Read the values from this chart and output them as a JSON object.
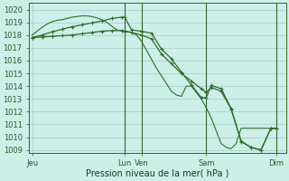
{
  "background_color": "#ceeee8",
  "grid_color": "#9fcfca",
  "line_color": "#2d6e2d",
  "x_ticks_labels": [
    "Jeu",
    "Lun",
    "Ven",
    "Sam",
    "Dim"
  ],
  "x_ticks_pos": [
    0,
    9.3,
    11.0,
    17.5,
    24.5
  ],
  "xlabel": "Pression niveau de la mer( hPa )",
  "ylim": [
    1008.8,
    1020.5
  ],
  "yticks": [
    1009,
    1010,
    1011,
    1012,
    1013,
    1014,
    1015,
    1016,
    1017,
    1018,
    1019,
    1020
  ],
  "xlim": [
    -0.3,
    25.5
  ],
  "vlines_x": [
    9.3,
    11.0,
    17.5,
    24.5
  ],
  "series1_x": [
    0,
    0.5,
    1,
    1.5,
    2,
    2.5,
    3,
    3.5,
    4,
    4.5,
    5,
    5.5,
    6,
    6.5,
    7,
    7.5,
    8,
    8.5,
    9,
    9.5,
    10,
    10.5,
    11,
    11.5,
    12,
    12.5,
    13,
    13.5,
    14,
    14.5,
    15,
    15.5,
    16,
    16.5,
    17,
    17.5,
    18,
    18.5,
    19,
    19.5,
    20,
    20.5,
    21,
    21.5,
    22,
    22.5,
    23,
    23.5,
    24,
    24.5
  ],
  "series1_y": [
    1018.0,
    1018.3,
    1018.6,
    1018.85,
    1019.05,
    1019.15,
    1019.2,
    1019.3,
    1019.4,
    1019.45,
    1019.5,
    1019.5,
    1019.45,
    1019.35,
    1019.2,
    1019.0,
    1018.7,
    1018.4,
    1018.35,
    1018.3,
    1018.2,
    1018.0,
    1017.5,
    1016.8,
    1016.1,
    1015.4,
    1014.8,
    1014.2,
    1013.6,
    1013.3,
    1013.2,
    1014.0,
    1014.0,
    1013.5,
    1013.0,
    1012.3,
    1011.5,
    1010.5,
    1009.5,
    1009.2,
    1009.1,
    1009.5,
    1010.7,
    1010.7,
    1010.7,
    1010.7,
    1010.7,
    1010.7,
    1010.7,
    1010.7
  ],
  "series2_x": [
    0,
    1,
    2,
    3,
    4,
    5,
    6,
    7,
    8,
    9,
    9.3,
    10,
    11,
    12,
    13,
    14,
    15,
    16,
    17,
    17.5,
    18,
    19,
    20,
    21,
    22,
    23,
    24,
    24.5
  ],
  "series2_y": [
    1017.8,
    1018.0,
    1018.25,
    1018.45,
    1018.65,
    1018.8,
    1018.95,
    1019.1,
    1019.3,
    1019.4,
    1019.4,
    1018.4,
    1018.3,
    1018.15,
    1016.9,
    1016.15,
    1015.1,
    1014.1,
    1013.1,
    1013.1,
    1014.05,
    1013.8,
    1012.25,
    1009.7,
    1009.2,
    1009.0,
    1010.7,
    1010.7
  ],
  "series3_x": [
    0,
    1,
    2,
    3,
    4,
    5,
    6,
    7,
    8,
    9,
    9.3,
    10,
    11,
    12,
    13,
    14,
    15,
    16,
    17,
    17.5,
    18,
    19,
    20,
    21,
    22,
    23,
    24,
    24.5
  ],
  "series3_y": [
    1017.8,
    1017.85,
    1017.9,
    1017.95,
    1018.0,
    1018.1,
    1018.2,
    1018.3,
    1018.35,
    1018.35,
    1018.3,
    1018.2,
    1018.0,
    1017.7,
    1016.5,
    1015.75,
    1015.0,
    1014.4,
    1013.8,
    1013.5,
    1013.9,
    1013.6,
    1012.2,
    1009.65,
    1009.2,
    1009.0,
    1010.7,
    1010.7
  ]
}
